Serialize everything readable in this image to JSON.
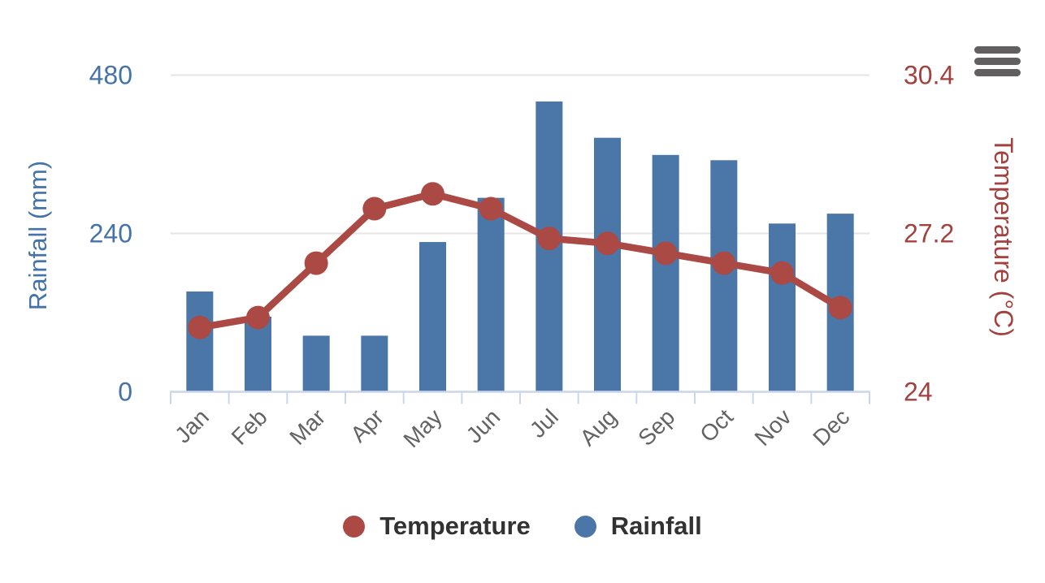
{
  "chart_data": {
    "type": "combo-column-line-dual-axis",
    "categories": [
      "Jan",
      "Feb",
      "Mar",
      "Apr",
      "May",
      "Jun",
      "Jul",
      "Aug",
      "Sep",
      "Oct",
      "Nov",
      "Dec"
    ],
    "series": [
      {
        "name": "Temperature",
        "type": "line",
        "axis": "right",
        "unit": "°C",
        "color": "#ab4a45",
        "values": [
          25.3,
          25.5,
          26.6,
          27.7,
          28.0,
          27.7,
          27.1,
          27.0,
          26.8,
          26.6,
          26.4,
          25.7
        ]
      },
      {
        "name": "Rainfall",
        "type": "column",
        "axis": "left",
        "unit": "mm",
        "color": "#4a76a8",
        "values": [
          152,
          114,
          85,
          85,
          227,
          294,
          440,
          385,
          359,
          351,
          255,
          270
        ]
      }
    ],
    "y_left": {
      "title": "Rainfall (mm)",
      "min": 0,
      "max": 480,
      "ticks": [
        0,
        240,
        480
      ],
      "tick_labels": [
        "0",
        "240",
        "480"
      ]
    },
    "y_right": {
      "title": "Temperature (°C)",
      "min": 24,
      "max": 30.4,
      "ticks": [
        24,
        27.2,
        30.4
      ],
      "tick_labels": [
        "24",
        "27.2",
        "30.4"
      ]
    },
    "grid": "horizontal gridlines at left-axis ticks",
    "x_label_rotation": -45,
    "legend_position": "bottom-center"
  },
  "legend": {
    "items": [
      {
        "label": "Temperature",
        "color": "#ab4a45"
      },
      {
        "label": "Rainfall",
        "color": "#4a76a8"
      }
    ]
  },
  "toolbar": {
    "context_menu_icon": "hamburger-icon"
  },
  "colors": {
    "rainfall_blue": "#4a76a8",
    "temperature_red": "#ab4a45",
    "left_axis_text": "#4673a7",
    "right_axis_text": "#a2423f",
    "gridline": "#e7e5e2",
    "axis_line": "#ccd6eb",
    "x_label": "#636363",
    "legend_text": "#323232",
    "background": "#ffffff"
  }
}
